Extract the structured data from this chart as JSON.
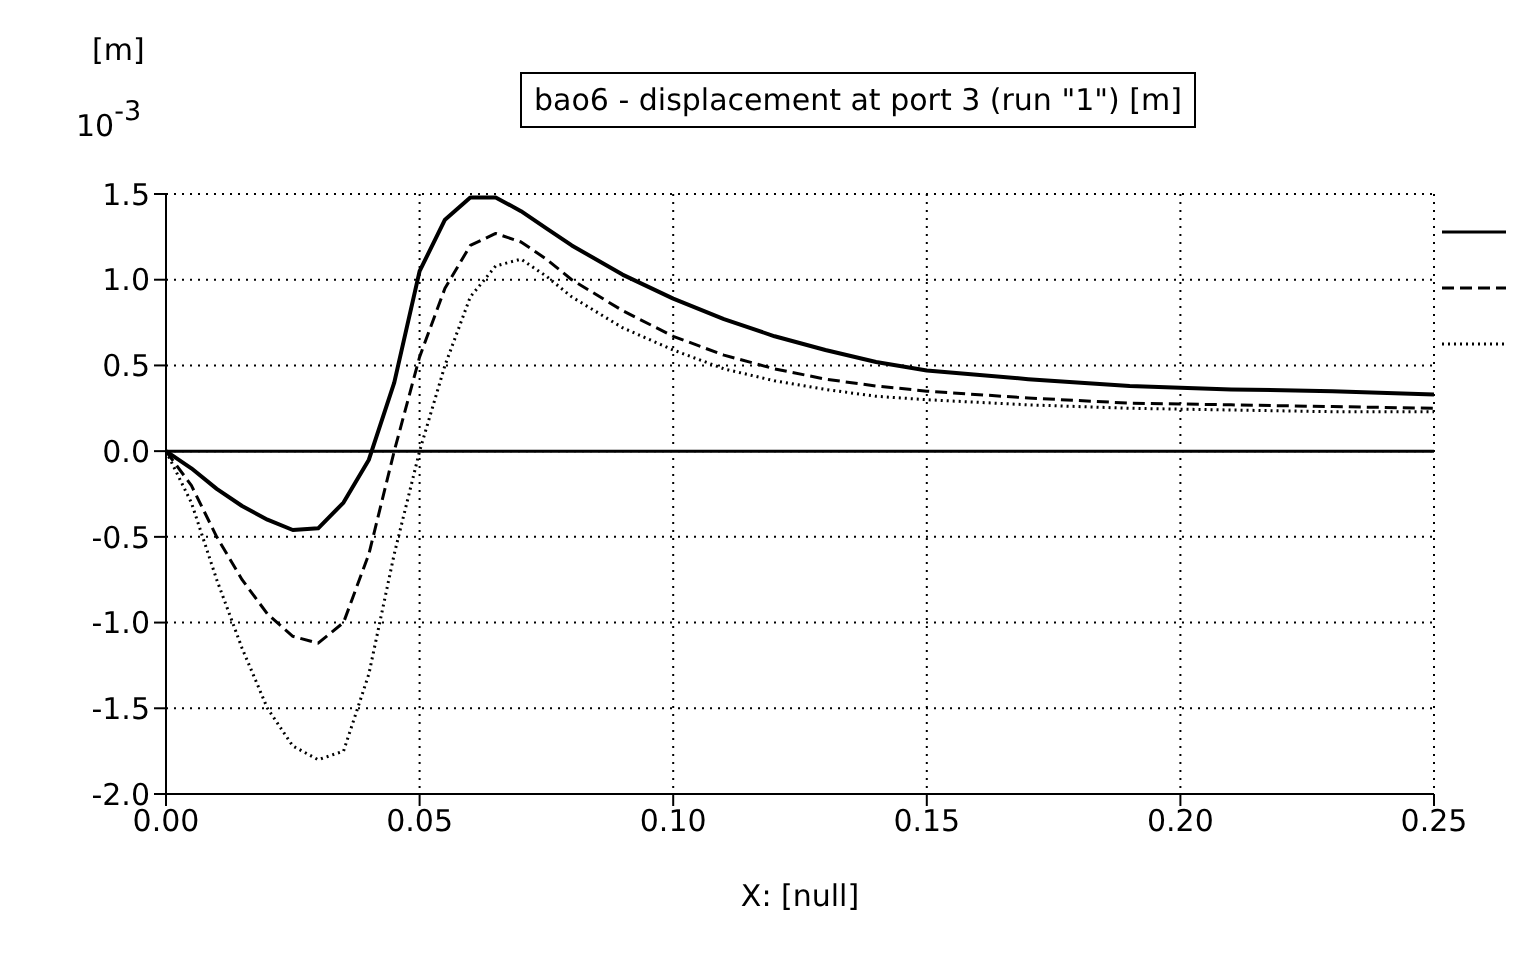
{
  "chart_data": {
    "type": "line",
    "title": "bao6 - displacement at port 3 (run \"1\") [m]",
    "xlabel": "X:  [null]",
    "annotations": [
      "[m]",
      "10$^{-3}$"
    ],
    "x": [
      0,
      0.005,
      0.01,
      0.015,
      0.02,
      0.025,
      0.03,
      0.035,
      0.04,
      0.045,
      0.05,
      0.055,
      0.06,
      0.065,
      0.07,
      0.075,
      0.08,
      0.09,
      0.1,
      0.11,
      0.12,
      0.13,
      0.14,
      0.15,
      0.17,
      0.19,
      0.21,
      0.23,
      0.25
    ],
    "series": [
      {
        "color": "#000000",
        "line_style": "solid",
        "values": [
          0,
          -0.1,
          -0.22,
          -0.32,
          -0.4,
          -0.46,
          -0.45,
          -0.3,
          -0.05,
          0.4,
          1.05,
          1.35,
          1.48,
          1.48,
          1.4,
          1.3,
          1.2,
          1.03,
          0.89,
          0.77,
          0.67,
          0.59,
          0.52,
          0.47,
          0.42,
          0.38,
          0.36,
          0.35,
          0.33
        ]
      },
      {
        "color": "#000000",
        "line_style": "dashed",
        "values": [
          0,
          -0.2,
          -0.5,
          -0.75,
          -0.95,
          -1.08,
          -1.12,
          -1.0,
          -0.6,
          0.0,
          0.55,
          0.95,
          1.2,
          1.27,
          1.22,
          1.12,
          1.0,
          0.82,
          0.67,
          0.56,
          0.48,
          0.42,
          0.38,
          0.35,
          0.31,
          0.28,
          0.27,
          0.26,
          0.25
        ]
      },
      {
        "color": "#000000",
        "line_style": "dotted",
        "values": [
          0,
          -0.3,
          -0.75,
          -1.15,
          -1.5,
          -1.72,
          -1.8,
          -1.75,
          -1.3,
          -0.6,
          0.0,
          0.5,
          0.9,
          1.08,
          1.12,
          1.02,
          0.9,
          0.72,
          0.59,
          0.48,
          0.41,
          0.36,
          0.32,
          0.3,
          0.27,
          0.25,
          0.24,
          0.23,
          0.23
        ]
      }
    ],
    "xlim": [
      0,
      0.25
    ],
    "xticks": [
      {
        "value": 0,
        "label": "0.00"
      },
      {
        "value": 0.05,
        "label": "0.05"
      },
      {
        "value": 0.1,
        "label": "0.10"
      },
      {
        "value": 0.15,
        "label": "0.15"
      },
      {
        "value": 0.2,
        "label": "0.20"
      },
      {
        "value": 0.25,
        "label": "0.25"
      }
    ],
    "ylim": [
      -2,
      1.5
    ],
    "yticks": [
      {
        "value": -2,
        "label": "-2.0"
      },
      {
        "value": -1.5,
        "label": "-1.5"
      },
      {
        "value": -1,
        "label": "-1.0"
      },
      {
        "value": -0.5,
        "label": "-0.5"
      },
      {
        "value": 0,
        "label": "0.0"
      },
      {
        "value": 0.5,
        "label": "0.5"
      },
      {
        "value": 1,
        "label": "1.0"
      },
      {
        "value": 1.5,
        "label": "1.5"
      }
    ],
    "ref_lines": [
      {
        "axis": "y",
        "value": 0,
        "color": "#000000",
        "line_style": "solid"
      }
    ],
    "grid": true,
    "marker": "none"
  }
}
